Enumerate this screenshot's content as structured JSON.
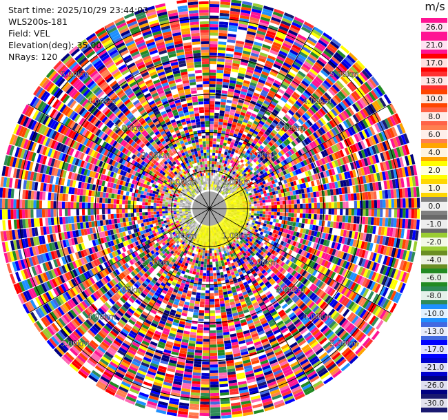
{
  "header": {
    "start_time": "Start time: 2025/10/29 23:44:03",
    "station": "WLS200s-181",
    "field": "Field: VEL",
    "elevation": "Elevation(deg): 35.00",
    "nrays": "NRays: 120"
  },
  "colorbar": {
    "unit": "m/s",
    "ticks": [
      "26.0",
      "21.0",
      "17.0",
      "13.0",
      "10.0",
      "8.0",
      "6.0",
      "4.0",
      "2.0",
      "1.0",
      "0.0",
      "-1.0",
      "-2.0",
      "-4.0",
      "-6.0",
      "-8.0",
      "-10.0",
      "-13.0",
      "-17.0",
      "-21.0",
      "-26.0",
      "-30.0"
    ],
    "colors": [
      "#ff1493",
      "#ff1493",
      "#ff0000",
      "#ff3030",
      "#ff4500",
      "#ff6347",
      "#ff7f50",
      "#ffa500",
      "#ffff00",
      "#ffd700",
      "#808080",
      "#696969",
      "#9acd32",
      "#6b8e23",
      "#228b22",
      "#2e8b57",
      "#1e90ff",
      "#4169e1",
      "#0000ff",
      "#0000cd",
      "#000080",
      "#191970"
    ]
  },
  "chart_data": {
    "type": "ppi",
    "field": "VEL",
    "units": "m/s",
    "nrays": 120,
    "elevation_deg": 35.0,
    "max_range_km": 5.5,
    "range_ring_labels": [
      "1.00km",
      "2.00km",
      "3.00km",
      "4.00km",
      "5.00km"
    ],
    "color_scale_values": [
      26.0,
      21.0,
      17.0,
      13.0,
      10.0,
      8.0,
      6.0,
      4.0,
      2.0,
      1.0,
      0.0,
      -1.0,
      -2.0,
      -4.0,
      -6.0,
      -8.0,
      -10.0,
      -13.0,
      -17.0,
      -21.0,
      -26.0,
      -30.0
    ],
    "near_field": "light gray / yellow-green / yellow low velocities within ~1 km",
    "far_field": "noisy high magnitude velocities beyond ~1 km",
    "grid": true
  }
}
